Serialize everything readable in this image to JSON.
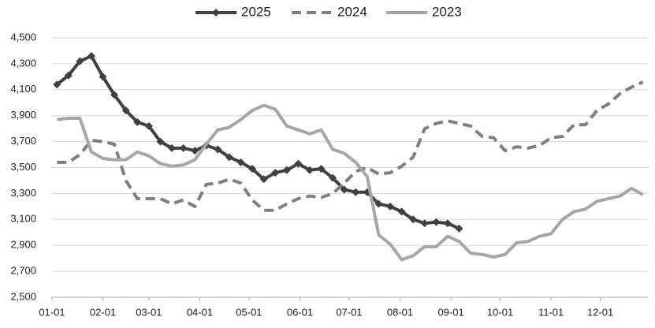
{
  "chart_data": {
    "type": "line",
    "x": [
      3,
      10,
      17,
      24,
      31,
      38,
      45,
      52,
      59,
      66,
      73,
      80,
      87,
      94,
      101,
      108,
      115,
      122,
      129,
      136,
      143,
      150,
      157,
      164,
      171,
      178,
      185,
      192,
      199,
      206,
      213,
      220,
      227,
      234,
      241,
      248,
      255,
      262,
      269,
      276,
      283,
      290,
      297,
      304,
      311,
      318,
      325,
      332,
      339,
      346,
      353,
      360
    ],
    "xlim": [
      0,
      363
    ],
    "xticks": [
      {
        "value": 0,
        "label": "01-01"
      },
      {
        "value": 31,
        "label": "02-01"
      },
      {
        "value": 59,
        "label": "03-01"
      },
      {
        "value": 90,
        "label": "04-01"
      },
      {
        "value": 120,
        "label": "05-01"
      },
      {
        "value": 151,
        "label": "06-01"
      },
      {
        "value": 181,
        "label": "07-01"
      },
      {
        "value": 212,
        "label": "08-01"
      },
      {
        "value": 243,
        "label": "09-01"
      },
      {
        "value": 273,
        "label": "10-01"
      },
      {
        "value": 304,
        "label": "11-01"
      },
      {
        "value": 334,
        "label": "12-01"
      }
    ],
    "ylim": [
      2500,
      4500
    ],
    "yticks": [
      {
        "value": 2500,
        "label": "2,500"
      },
      {
        "value": 2700,
        "label": "2,700"
      },
      {
        "value": 2900,
        "label": "2,900"
      },
      {
        "value": 3100,
        "label": "3,100"
      },
      {
        "value": 3300,
        "label": "3,300"
      },
      {
        "value": 3500,
        "label": "3,500"
      },
      {
        "value": 3700,
        "label": "3,700"
      },
      {
        "value": 3900,
        "label": "3,900"
      },
      {
        "value": 4100,
        "label": "4,100"
      },
      {
        "value": 4300,
        "label": "4,300"
      },
      {
        "value": 4500,
        "label": "4,500"
      }
    ],
    "grid": true,
    "legend": "top",
    "series": [
      {
        "name": "2025",
        "color": "#404040",
        "style": "solid",
        "marker": "diamond",
        "values": [
          4140,
          4210,
          4320,
          4360,
          4200,
          4060,
          3940,
          3850,
          3820,
          3700,
          3650,
          3650,
          3630,
          3670,
          3640,
          3580,
          3540,
          3490,
          3410,
          3460,
          3480,
          3530,
          3480,
          3490,
          3420,
          3330,
          3310,
          3310,
          3220,
          3200,
          3160,
          3100,
          3070,
          3080,
          3070,
          3030,
          null,
          null,
          null,
          null,
          null,
          null,
          null,
          null,
          null,
          null,
          null,
          null,
          null,
          null,
          null,
          null
        ]
      },
      {
        "name": "2024",
        "color": "#7f7f7f",
        "style": "dashed",
        "values": [
          3540,
          3540,
          3600,
          3710,
          3700,
          3680,
          3400,
          3260,
          3260,
          3260,
          3220,
          3250,
          3200,
          3370,
          3380,
          3410,
          3380,
          3250,
          3170,
          3170,
          3220,
          3260,
          3280,
          3270,
          3300,
          3380,
          3470,
          3500,
          3450,
          3460,
          3510,
          3580,
          3800,
          3840,
          3860,
          3840,
          3820,
          3740,
          3730,
          3630,
          3660,
          3650,
          3670,
          3730,
          3740,
          3830,
          3830,
          3940,
          3990,
          4070,
          4120,
          4160
        ]
      },
      {
        "name": "2023",
        "color": "#a6a6a6",
        "style": "solid",
        "values": [
          3870,
          3880,
          3880,
          3620,
          3570,
          3560,
          3560,
          3620,
          3590,
          3530,
          3510,
          3520,
          3560,
          3680,
          3790,
          3810,
          3870,
          3940,
          3980,
          3950,
          3820,
          3790,
          3760,
          3790,
          3640,
          3610,
          3540,
          3430,
          2980,
          2910,
          2790,
          2820,
          2890,
          2890,
          2970,
          2930,
          2840,
          2830,
          2810,
          2830,
          2920,
          2930,
          2970,
          2990,
          3100,
          3160,
          3180,
          3240,
          3260,
          3280,
          3340,
          3290
        ]
      }
    ]
  }
}
